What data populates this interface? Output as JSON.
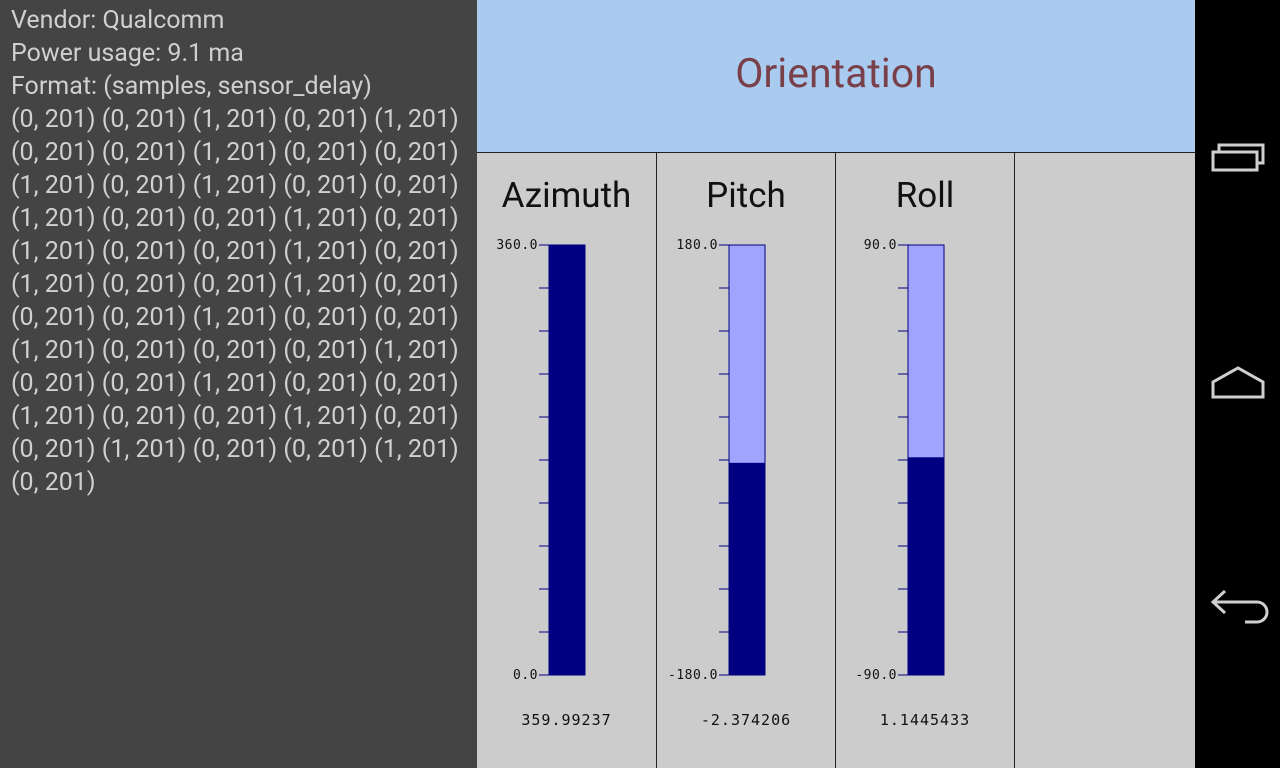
{
  "info": {
    "vendor_line": "Vendor: Qualcomm",
    "power_line": "Power usage: 9.1 ma",
    "format_line": "Format: (samples, sensor_delay)",
    "samples_text": "(0, 201) (0, 201) (1, 201) (0, 201) (1, 201) (0, 201) (0, 201) (1, 201) (0, 201) (0, 201) (1, 201) (0, 201) (1, 201) (0, 201) (0, 201) (1, 201) (0, 201) (0, 201) (1, 201) (0, 201) (1, 201) (0, 201) (0, 201) (1, 201) (0, 201) (1, 201) (0, 201) (0, 201) (1, 201) (0, 201) (0, 201) (0, 201) (1, 201) (0, 201) (0, 201) (1, 201) (0, 201) (0, 201) (0, 201) (1, 201) (0, 201) (0, 201) (1, 201) (0, 201) (0, 201) (1, 201) (0, 201) (0, 201) (1, 201) (0, 201) (0, 201) (1, 201) (0, 201) (0, 201) (1, 201) (0, 201)"
  },
  "header": {
    "title": "Orientation"
  },
  "gauges": [
    {
      "name": "Azimuth",
      "min": 0,
      "max": 360,
      "min_label": "0.0",
      "max_label": "360.0",
      "value": 359.99237,
      "value_text": "359.99237"
    },
    {
      "name": "Pitch",
      "min": -180,
      "max": 180,
      "min_label": "-180.0",
      "max_label": "180.0",
      "value": -2.374206,
      "value_text": "-2.374206"
    },
    {
      "name": "Roll",
      "min": -90,
      "max": 90,
      "min_label": "-90.0",
      "max_label": "90.0",
      "value": 1.1445433,
      "value_text": "1.1445433"
    }
  ],
  "colors": {
    "fill": "#000080",
    "track": "#a0a4ff",
    "tick": "#000080",
    "header_bg": "#a9cbef",
    "title": "#7a404a",
    "panel_bg": "#444444"
  },
  "navbar": {
    "icons": [
      "recent-apps-icon",
      "home-icon",
      "back-icon"
    ]
  }
}
